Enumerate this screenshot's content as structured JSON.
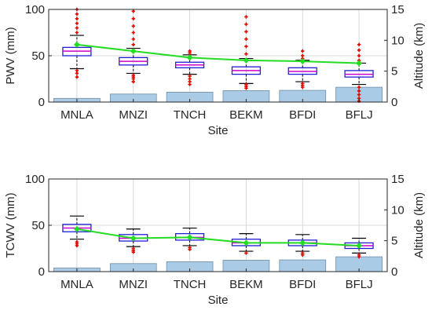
{
  "chart_data": [
    {
      "type": "box",
      "categories": [
        "MNLA",
        "MNZI",
        "TNCH",
        "BEKM",
        "BFDI",
        "BFLJ"
      ],
      "xlabel": "Site",
      "ylabel": "PWV (mm)",
      "ylabel_right": "Altitude (km)",
      "ylim": [
        0,
        100
      ],
      "yticks": [
        0,
        50,
        100
      ],
      "ylim_right": [
        0,
        15
      ],
      "yticks_right": [
        0,
        5,
        10,
        15
      ],
      "grid": true,
      "boxes": [
        {
          "site": "MNLA",
          "whisker_low": 36,
          "q1": 50,
          "median": 55,
          "q3": 59,
          "whisker_high": 72,
          "outliers_low": [
            34,
            31,
            27
          ],
          "outliers_high": [
            75,
            80,
            85,
            90,
            95,
            100
          ]
        },
        {
          "site": "MNZI",
          "whisker_low": 31,
          "q1": 40,
          "median": 44,
          "q3": 48,
          "whisker_high": 58,
          "outliers_low": [
            29,
            27,
            25,
            22
          ],
          "outliers_high": [
            62,
            68,
            75,
            82,
            90,
            98
          ]
        },
        {
          "site": "TNCH",
          "whisker_low": 30,
          "q1": 37,
          "median": 40,
          "q3": 43,
          "whisker_high": 51,
          "outliers_low": [
            28,
            25,
            22,
            19
          ],
          "outliers_high": [
            53,
            55
          ]
        },
        {
          "site": "BEKM",
          "whisker_low": 20,
          "q1": 30,
          "median": 34,
          "q3": 38,
          "whisker_high": 47,
          "outliers_low": [
            19,
            17,
            15
          ],
          "outliers_high": [
            52,
            60,
            68,
            76,
            84,
            92
          ]
        },
        {
          "site": "BFDI",
          "whisker_low": 22,
          "q1": 30,
          "median": 33,
          "q3": 37,
          "whisker_high": 45,
          "outliers_low": [
            20,
            18,
            16
          ],
          "outliers_high": [
            47,
            50,
            55
          ]
        },
        {
          "site": "BFLJ",
          "whisker_low": 19,
          "q1": 27,
          "median": 30,
          "q3": 34,
          "whisker_high": 42,
          "outliers_low": [
            16,
            12,
            8,
            4,
            1
          ],
          "outliers_high": [
            45,
            50,
            56,
            62
          ]
        }
      ],
      "mean_line": [
        62,
        55,
        48,
        45,
        44,
        42
      ],
      "altitude_km": [
        0.6,
        1.3,
        1.6,
        1.85,
        1.9,
        2.4
      ]
    },
    {
      "type": "box",
      "categories": [
        "MNLA",
        "MNZI",
        "TNCH",
        "BEKM",
        "BFDI",
        "BFLJ"
      ],
      "xlabel": "Site",
      "ylabel": "TCWV (mm)",
      "ylabel_right": "Altitude (km)",
      "ylim": [
        0,
        100
      ],
      "yticks": [
        0,
        50,
        100
      ],
      "ylim_right": [
        0,
        15
      ],
      "yticks_right": [
        0,
        5,
        10,
        15
      ],
      "grid": true,
      "boxes": [
        {
          "site": "MNLA",
          "whisker_low": 35,
          "q1": 43,
          "median": 47,
          "q3": 51,
          "whisker_high": 60,
          "outliers_low": [
            32,
            30,
            28
          ],
          "outliers_high": []
        },
        {
          "site": "MNZI",
          "whisker_low": 27,
          "q1": 33,
          "median": 36,
          "q3": 40,
          "whisker_high": 46,
          "outliers_low": [
            25,
            23,
            21
          ],
          "outliers_high": []
        },
        {
          "site": "TNCH",
          "whisker_low": 28,
          "q1": 34,
          "median": 37,
          "q3": 41,
          "whisker_high": 47,
          "outliers_low": [
            26,
            24
          ],
          "outliers_high": []
        },
        {
          "site": "BEKM",
          "whisker_low": 22,
          "q1": 28,
          "median": 31,
          "q3": 35,
          "whisker_high": 41,
          "outliers_low": [
            20
          ],
          "outliers_high": []
        },
        {
          "site": "BFDI",
          "whisker_low": 22,
          "q1": 28,
          "median": 31,
          "q3": 34,
          "whisker_high": 40,
          "outliers_low": [
            20,
            18
          ],
          "outliers_high": []
        },
        {
          "site": "BFLJ",
          "whisker_low": 20,
          "q1": 25,
          "median": 28,
          "q3": 31,
          "whisker_high": 36,
          "outliers_low": [
            18,
            16
          ],
          "outliers_high": []
        }
      ],
      "mean_line": [
        46,
        36,
        37,
        31,
        31,
        28
      ],
      "altitude_km": [
        0.6,
        1.3,
        1.6,
        1.85,
        1.9,
        2.4
      ]
    }
  ],
  "colors": {
    "box_edge": "#1f1fd6",
    "median": "#cc00cc",
    "whisker": "#000000",
    "outlier": "#e60000",
    "mean_line": "#22dd22",
    "mean_marker": "#22dd22",
    "altitude_bar": "#a9cbe6",
    "altitude_bar_edge": "#6f8fa8",
    "grid": "#d9d9d9",
    "axis": "#262626"
  }
}
